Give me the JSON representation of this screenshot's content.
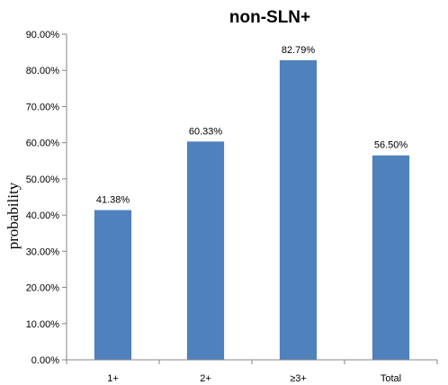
{
  "chart_data": {
    "type": "bar",
    "title": "non-SLN+",
    "ylabel": "probability",
    "xlabel": "",
    "categories": [
      "1+",
      "2+",
      "≥3+",
      "Total"
    ],
    "values": [
      41.38,
      60.33,
      82.79,
      56.5
    ],
    "data_labels": [
      "41.38%",
      "60.33%",
      "82.79%",
      "56.50%"
    ],
    "ylim": [
      0,
      90
    ],
    "yticks": [
      {
        "value": 0,
        "label": "0.00%"
      },
      {
        "value": 10,
        "label": "10.00%"
      },
      {
        "value": 20,
        "label": "20.00%"
      },
      {
        "value": 30,
        "label": "30.00%"
      },
      {
        "value": 40,
        "label": "40.00%"
      },
      {
        "value": 50,
        "label": "50.00%"
      },
      {
        "value": 60,
        "label": "60.00%"
      },
      {
        "value": 70,
        "label": "70.00%"
      },
      {
        "value": 80,
        "label": "80.00%"
      },
      {
        "value": 90,
        "label": "90.00%"
      }
    ],
    "grid": false,
    "legend": "none",
    "bar_color": "#4F81BD",
    "axis_color": "#868686"
  }
}
